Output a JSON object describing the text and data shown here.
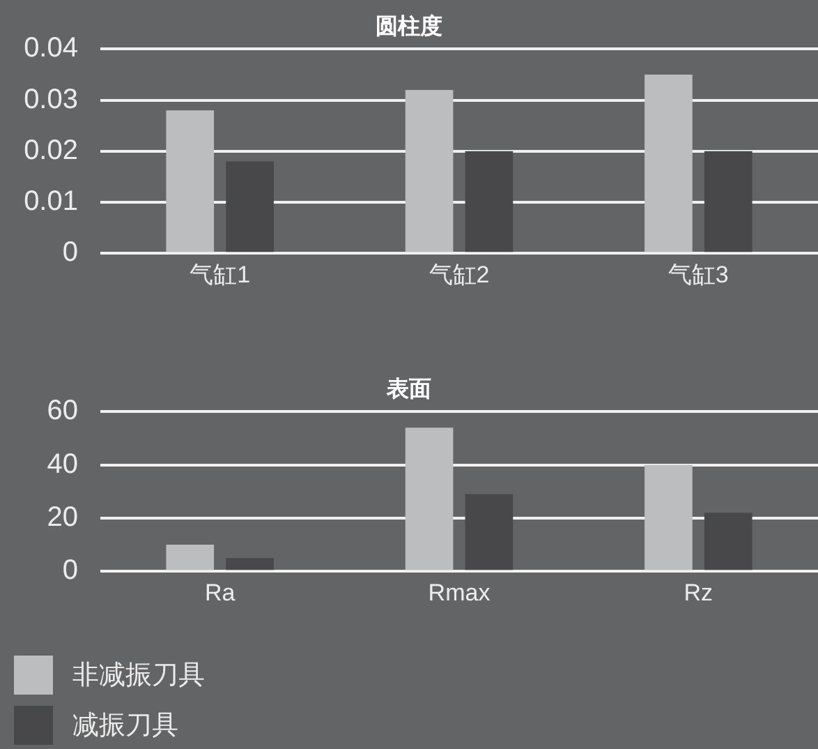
{
  "chart_data": [
    {
      "type": "bar",
      "title": "圆柱度",
      "categories": [
        "气缸1",
        "气缸2",
        "气缸3"
      ],
      "series": [
        {
          "color": "#bcbdbf",
          "values": [
            0.028,
            0.032,
            0.035
          ]
        },
        {
          "color": "#48484a",
          "values": [
            0.018,
            0.02,
            0.02
          ]
        }
      ],
      "ylim": [
        0,
        0.04
      ],
      "yticks": [
        0,
        0.01,
        0.02,
        0.03,
        0.04
      ],
      "grid": "y"
    },
    {
      "type": "bar",
      "title": "表面",
      "categories": [
        "Ra",
        "Rmax",
        "Rz"
      ],
      "series": [
        {
          "name": "非减振刀具",
          "color": "#bcbdbf",
          "values": [
            10,
            54,
            40
          ]
        },
        {
          "name": "减振刀具",
          "color": "#48484a",
          "values": [
            5,
            29,
            22
          ]
        }
      ],
      "ylim": [
        0,
        60
      ],
      "yticks": [
        0,
        20,
        40,
        60
      ],
      "grid": "y",
      "legend": "bottom"
    }
  ]
}
